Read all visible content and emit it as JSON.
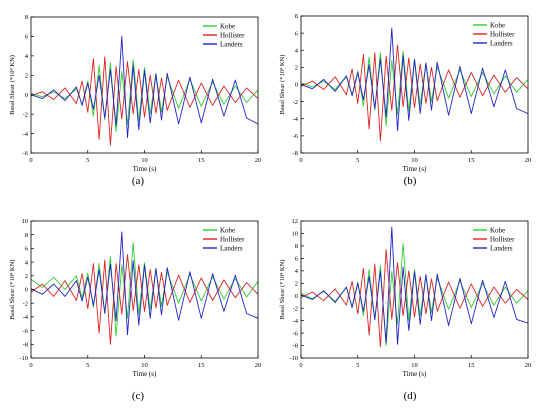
{
  "chart_data": [
    {
      "id": "a",
      "type": "line",
      "panel_label": "(a)",
      "xlabel": "Time (s)",
      "ylabel": "Basal Shear (*10⁴ KN)",
      "xlim": [
        0,
        20
      ],
      "ylim": [
        -6,
        8
      ],
      "xticks": [
        0,
        5,
        10,
        15,
        20
      ],
      "yticks": [
        -6,
        -4,
        -2,
        0,
        2,
        4,
        6,
        8
      ],
      "legend": "top-right",
      "series": [
        {
          "name": "Kobe",
          "color": "#33cc33",
          "x": [
            0,
            1,
            2,
            3,
            4,
            4.5,
            5,
            5.5,
            6,
            6.5,
            7,
            7.5,
            8,
            8.5,
            9,
            9.5,
            10,
            10.5,
            11,
            11.5,
            12,
            13,
            14,
            15,
            16,
            17,
            18,
            19,
            20
          ],
          "y": [
            0.1,
            -0.2,
            0.3,
            -0.4,
            0.6,
            -1.0,
            1.4,
            -2.2,
            3.0,
            -2.6,
            3.3,
            -3.8,
            2.4,
            -3.1,
            3.6,
            -2.7,
            2.8,
            -2.0,
            2.2,
            -1.8,
            1.9,
            -1.4,
            1.6,
            -1.2,
            1.3,
            -1.0,
            0.9,
            -0.8,
            0.5
          ]
        },
        {
          "name": "Hollister",
          "color": "#dd2222",
          "x": [
            0,
            1,
            2,
            3,
            4,
            4.5,
            5,
            5.5,
            6,
            6.5,
            7,
            7.5,
            8,
            8.5,
            9,
            9.5,
            10,
            10.5,
            11,
            11.5,
            12,
            13,
            14,
            15,
            16,
            17,
            18,
            19,
            20
          ],
          "y": [
            -0.1,
            0.3,
            -0.5,
            0.7,
            -0.9,
            1.4,
            -1.8,
            3.7,
            -4.6,
            3.9,
            -5.2,
            2.9,
            -2.5,
            3.4,
            -2.0,
            2.6,
            -2.3,
            2.0,
            -1.9,
            1.7,
            -1.6,
            1.5,
            -1.3,
            1.2,
            -1.1,
            0.9,
            -0.8,
            0.7,
            -0.4
          ]
        },
        {
          "name": "Landers",
          "color": "#2222cc",
          "x": [
            0,
            1,
            2,
            3,
            4,
            4.5,
            5,
            5.5,
            6,
            6.5,
            7,
            7.5,
            8,
            8.5,
            9,
            9.5,
            10,
            10.5,
            11,
            11.5,
            12,
            13,
            14,
            15,
            16,
            17,
            18,
            19,
            20
          ],
          "y": [
            0.0,
            -0.4,
            0.5,
            -0.6,
            0.8,
            -1.1,
            1.2,
            -1.5,
            2.0,
            -2.4,
            2.6,
            -3.2,
            6.0,
            -4.4,
            3.0,
            -3.6,
            2.5,
            -2.9,
            2.1,
            -2.6,
            2.2,
            -3.0,
            1.8,
            -2.9,
            1.6,
            -2.2,
            1.5,
            -2.4,
            -3.0
          ]
        }
      ]
    },
    {
      "id": "b",
      "type": "line",
      "panel_label": "(b)",
      "xlabel": "Time (s)",
      "ylabel": "Basal Shear (*10⁴ KN)",
      "xlim": [
        0,
        20
      ],
      "ylim": [
        -8,
        8
      ],
      "xticks": [
        0,
        5,
        10,
        15,
        20
      ],
      "yticks": [
        -8,
        -6,
        -4,
        -2,
        0,
        2,
        4,
        6,
        8
      ],
      "legend": "top-right",
      "series": [
        {
          "name": "Kobe",
          "color": "#33cc33",
          "x": [
            0,
            1,
            2,
            3,
            4,
            4.5,
            5,
            5.5,
            6,
            6.5,
            7,
            7.5,
            8,
            8.5,
            9,
            9.5,
            10,
            10.5,
            11,
            11.5,
            12,
            13,
            14,
            15,
            16,
            17,
            18,
            19,
            20
          ],
          "y": [
            0.2,
            -0.3,
            0.4,
            -0.6,
            0.9,
            -1.2,
            1.6,
            -2.5,
            3.2,
            -3.0,
            3.7,
            -4.8,
            2.8,
            -3.5,
            3.9,
            -3.1,
            3.0,
            -2.4,
            2.5,
            -2.0,
            2.1,
            -1.6,
            1.7,
            -1.4,
            1.4,
            -1.1,
            1.0,
            -0.9,
            0.6
          ]
        },
        {
          "name": "Hollister",
          "color": "#dd2222",
          "x": [
            0,
            1,
            2,
            3,
            4,
            4.5,
            5,
            5.5,
            6,
            6.5,
            7,
            7.5,
            8,
            8.5,
            9,
            9.5,
            10,
            10.5,
            11,
            11.5,
            12,
            13,
            14,
            15,
            16,
            17,
            18,
            19,
            20
          ],
          "y": [
            -0.2,
            0.4,
            -0.6,
            0.9,
            -1.2,
            1.8,
            -2.2,
            3.5,
            -5.2,
            3.7,
            -6.6,
            3.3,
            -3.0,
            4.6,
            -2.6,
            3.1,
            -2.7,
            2.4,
            -2.2,
            2.0,
            -1.9,
            1.7,
            -1.5,
            1.4,
            -1.3,
            1.1,
            -0.9,
            0.8,
            -0.5
          ]
        },
        {
          "name": "Landers",
          "color": "#2222cc",
          "x": [
            0,
            1,
            2,
            3,
            4,
            4.5,
            5,
            5.5,
            6,
            6.5,
            7,
            7.5,
            8,
            8.5,
            9,
            9.5,
            10,
            10.5,
            11,
            11.5,
            12,
            13,
            14,
            15,
            16,
            17,
            18,
            19,
            20
          ],
          "y": [
            0.0,
            -0.5,
            0.6,
            -0.8,
            1.0,
            -1.3,
            1.4,
            -1.8,
            2.3,
            -2.8,
            3.0,
            -3.8,
            6.6,
            -5.4,
            3.4,
            -4.2,
            2.9,
            -3.4,
            2.5,
            -3.0,
            2.6,
            -3.6,
            2.1,
            -3.4,
            1.9,
            -2.6,
            1.7,
            -2.8,
            -3.4
          ]
        }
      ]
    },
    {
      "id": "c",
      "type": "line",
      "panel_label": "(c)",
      "xlabel": "Time (s)",
      "ylabel": "Basal Shear (*10⁴ KN)",
      "xlim": [
        0,
        20
      ],
      "ylim": [
        -10,
        10
      ],
      "xticks": [
        0,
        5,
        10,
        15,
        20
      ],
      "yticks": [
        -10,
        -8,
        -6,
        -4,
        -2,
        0,
        2,
        4,
        6,
        8,
        10
      ],
      "legend": "top-right",
      "series": [
        {
          "name": "Kobe",
          "color": "#33cc33",
          "x": [
            0,
            1,
            2,
            3,
            4,
            4.5,
            5,
            5.5,
            6,
            6.5,
            7,
            7.5,
            8,
            8.5,
            9,
            9.5,
            10,
            10.5,
            11,
            11.5,
            12,
            13,
            14,
            15,
            16,
            17,
            18,
            19,
            20
          ],
          "y": [
            1.5,
            0.3,
            1.8,
            0.0,
            2.0,
            -1.2,
            2.4,
            -2.6,
            3.8,
            -3.4,
            4.8,
            -6.8,
            3.6,
            -4.2,
            6.8,
            -3.6,
            3.9,
            -2.9,
            3.0,
            -2.4,
            2.6,
            -2.0,
            2.2,
            -1.7,
            1.9,
            -1.4,
            1.6,
            -1.1,
            1.2
          ]
        },
        {
          "name": "Hollister",
          "color": "#dd2222",
          "x": [
            0,
            1,
            2,
            3,
            4,
            4.5,
            5,
            5.5,
            6,
            6.5,
            7,
            7.5,
            8,
            8.5,
            9,
            9.5,
            10,
            10.5,
            11,
            11.5,
            12,
            13,
            14,
            15,
            16,
            17,
            18,
            19,
            20
          ],
          "y": [
            -0.4,
            0.8,
            -1.0,
            1.3,
            -1.6,
            2.3,
            -2.8,
            3.8,
            -6.4,
            4.3,
            -8.0,
            3.8,
            -3.6,
            5.1,
            -3.1,
            3.6,
            -3.2,
            2.9,
            -2.7,
            2.5,
            -2.3,
            2.1,
            -1.9,
            1.7,
            -1.6,
            1.4,
            -1.2,
            1.0,
            -0.7
          ]
        },
        {
          "name": "Landers",
          "color": "#2222cc",
          "x": [
            0,
            1,
            2,
            3,
            4,
            4.5,
            5,
            5.5,
            6,
            6.5,
            7,
            7.5,
            8,
            8.5,
            9,
            9.5,
            10,
            10.5,
            11,
            11.5,
            12,
            13,
            14,
            15,
            16,
            17,
            18,
            19,
            20
          ],
          "y": [
            0.1,
            -0.7,
            0.8,
            -1.0,
            1.3,
            -1.7,
            1.8,
            -2.3,
            2.9,
            -3.5,
            3.7,
            -4.6,
            8.4,
            -6.6,
            4.2,
            -5.2,
            3.6,
            -4.2,
            3.1,
            -3.7,
            3.2,
            -4.5,
            2.6,
            -4.2,
            2.3,
            -3.2,
            2.1,
            -3.5,
            -4.2
          ]
        }
      ]
    },
    {
      "id": "d",
      "type": "line",
      "panel_label": "(d)",
      "xlabel": "Time (s)",
      "ylabel": "Basal Shear (*10⁴ KN)",
      "xlim": [
        0,
        20
      ],
      "ylim": [
        -10,
        12
      ],
      "xticks": [
        0,
        5,
        10,
        15,
        20
      ],
      "yticks": [
        -10,
        -8,
        -6,
        -4,
        -2,
        0,
        2,
        4,
        6,
        8,
        10,
        12
      ],
      "legend": "top-right",
      "series": [
        {
          "name": "Kobe",
          "color": "#33cc33",
          "x": [
            0,
            1,
            2,
            3,
            4,
            4.5,
            5,
            5.5,
            6,
            6.5,
            7,
            7.5,
            8,
            8.5,
            9,
            9.5,
            10,
            10.5,
            11,
            11.5,
            12,
            13,
            14,
            15,
            16,
            17,
            18,
            19,
            20
          ],
          "y": [
            0.4,
            -0.5,
            0.7,
            -0.9,
            1.3,
            -1.7,
            2.2,
            -3.2,
            4.2,
            -3.9,
            4.8,
            -8.0,
            3.9,
            -4.6,
            8.4,
            -4.0,
            4.2,
            -3.2,
            3.3,
            -2.7,
            2.9,
            -2.2,
            2.4,
            -1.9,
            2.0,
            -1.5,
            1.4,
            -1.2,
            0.8
          ]
        },
        {
          "name": "Hollister",
          "color": "#dd2222",
          "x": [
            0,
            1,
            2,
            3,
            4,
            4.5,
            5,
            5.5,
            6,
            6.5,
            7,
            7.5,
            8,
            8.5,
            9,
            9.5,
            10,
            10.5,
            11,
            11.5,
            12,
            13,
            14,
            15,
            16,
            17,
            18,
            19,
            20
          ],
          "y": [
            -0.3,
            0.6,
            -0.8,
            1.1,
            -1.5,
            2.3,
            -2.9,
            4.4,
            -6.3,
            5.1,
            -8.2,
            7.4,
            -3.8,
            5.3,
            -3.2,
            4.0,
            -3.4,
            3.1,
            -2.9,
            2.7,
            -2.5,
            2.2,
            -2.0,
            1.9,
            -1.7,
            1.4,
            -1.2,
            1.0,
            -0.6
          ]
        },
        {
          "name": "Landers",
          "color": "#2222cc",
          "x": [
            0,
            1,
            2,
            3,
            4,
            4.5,
            5,
            5.5,
            6,
            6.5,
            7,
            7.5,
            8,
            8.5,
            9,
            9.5,
            10,
            10.5,
            11,
            11.5,
            12,
            13,
            14,
            15,
            16,
            17,
            18,
            19,
            20
          ],
          "y": [
            0.1,
            -0.6,
            0.8,
            -1.1,
            1.4,
            -1.9,
            2.0,
            -2.5,
            3.1,
            -3.8,
            4.0,
            -7.6,
            11.0,
            -7.8,
            4.6,
            -5.6,
            3.9,
            -4.6,
            3.4,
            -4.0,
            3.5,
            -4.8,
            2.8,
            -4.5,
            2.5,
            -3.5,
            2.3,
            -3.8,
            -4.4
          ]
        }
      ]
    }
  ]
}
